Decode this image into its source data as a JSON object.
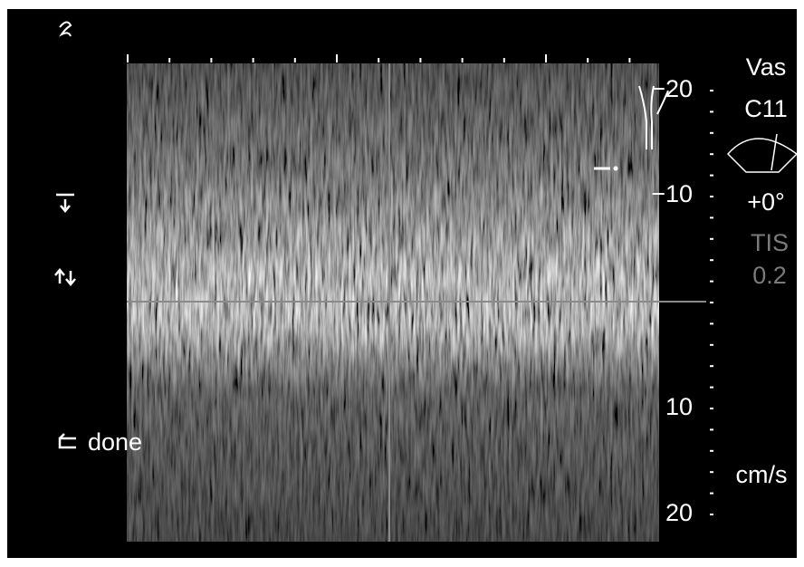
{
  "header": {
    "preset": "Vas",
    "probe": "C11",
    "angle": "+0°",
    "index_label": "TIS",
    "index_value": "0.2"
  },
  "scale": {
    "ticks": [
      "−20",
      "−10",
      "10",
      "20"
    ],
    "unit": "cm/s"
  },
  "menu": {
    "done": "done"
  }
}
